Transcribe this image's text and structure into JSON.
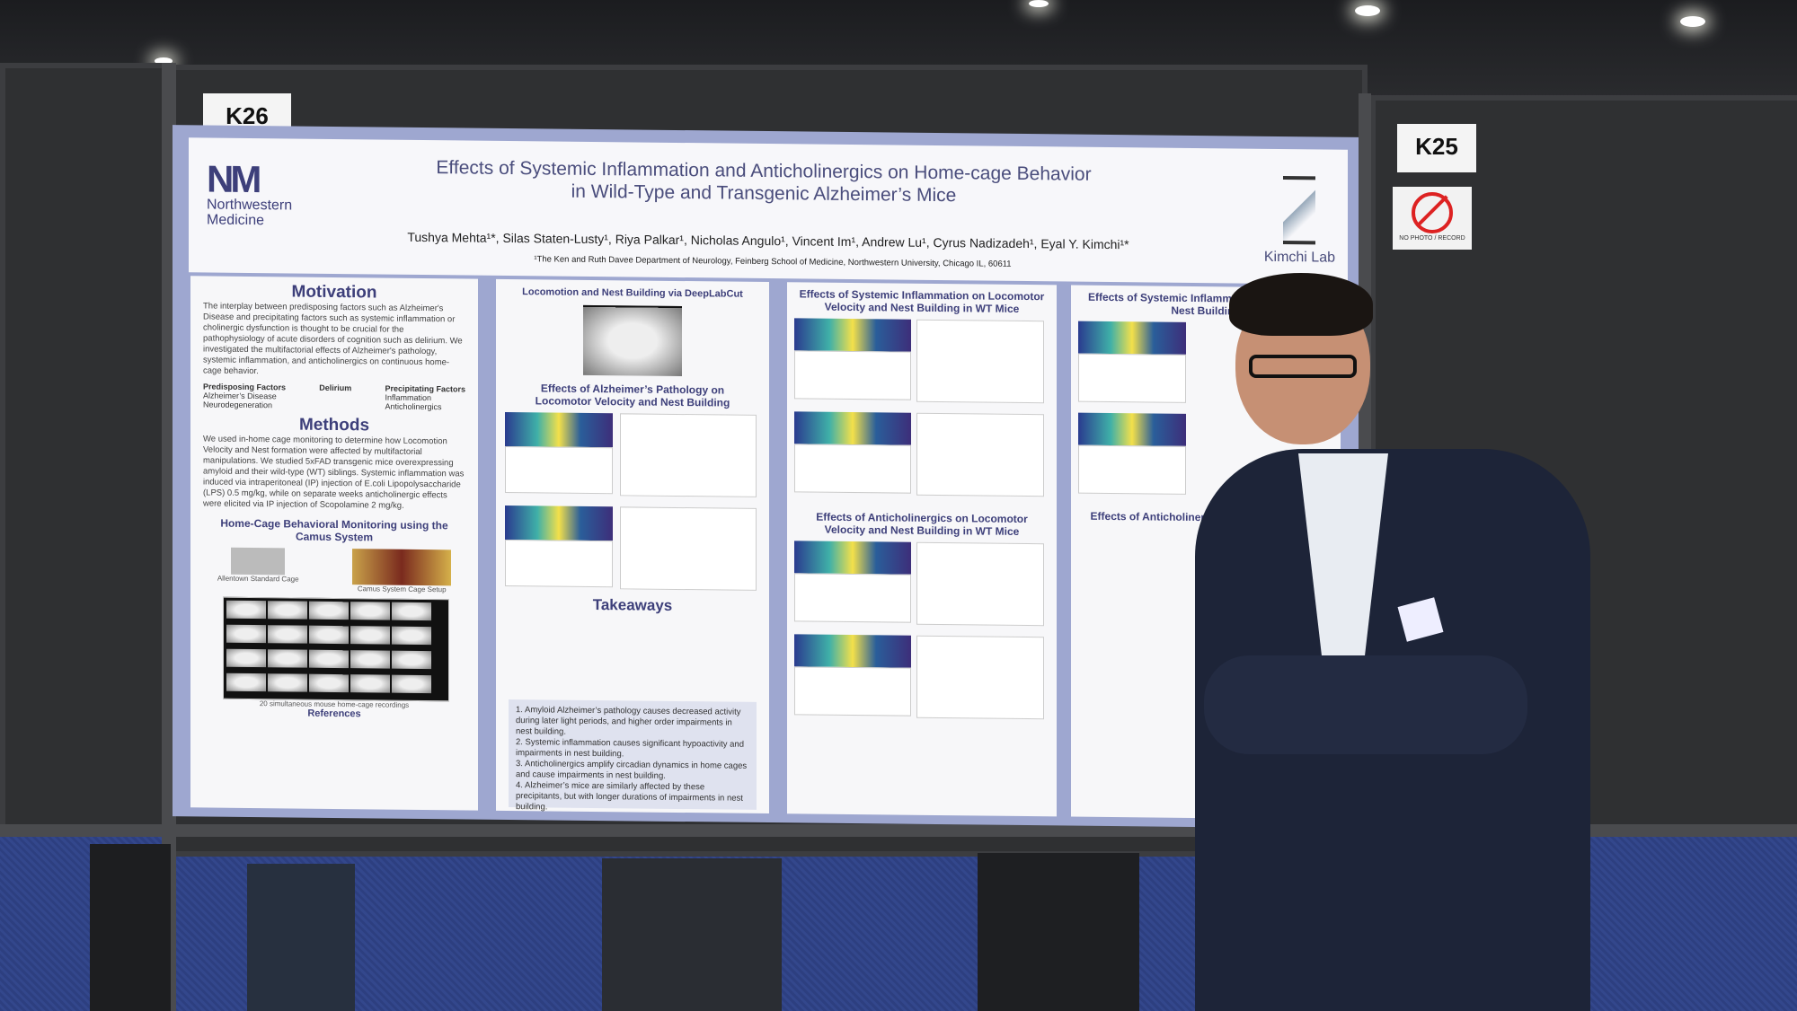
{
  "booths": {
    "left": "K26",
    "right": "K25"
  },
  "sign": {
    "text": "NO PHOTO / RECORD"
  },
  "poster": {
    "logo_mark": "NM",
    "logo_org_1": "Northwestern",
    "logo_org_2": "Medicine",
    "title_line1": "Effects of Systemic Inflammation and Anticholinergics on Home-cage Behavior",
    "title_line2": "in Wild-Type and Transgenic Alzheimer’s Mice",
    "authors": "Tushya Mehta¹*, Silas Staten-Lusty¹, Riya Palkar¹, Nicholas Angulo¹, Vincent Im¹, Andrew Lu¹, Cyrus Nadizadeh¹, Eyal Y. Kimchi¹*",
    "affiliation": "¹The Ken and Ruth Davee Department of Neurology, Feinberg School of Medicine, Northwestern University, Chicago IL, 60611",
    "lab_name": "Kimchi Lab",
    "motivation": {
      "heading": "Motivation",
      "text": "The interplay between predisposing factors such as Alzheimer's Disease and precipitating factors such as systemic inflammation or cholinergic dysfunction is thought to be crucial for the pathophysiology of acute disorders of cognition such as delirium. We investigated the multifactorial effects of Alzheimer's pathology, systemic inflammation, and anticholinergics on continuous home-cage behavior.",
      "predisposing": "Predisposing Factors",
      "predisposing_items": "Alzheimer’s Disease\nNeurodegeneration",
      "delirium": "Delirium",
      "precipitating": "Precipitating Factors",
      "precipitating_items": "Inflammation\nAnticholinergics"
    },
    "methods": {
      "heading": "Methods",
      "text": "We used in-home cage monitoring to determine how Locomotion Velocity and Nest formation were affected by multifactorial manipulations. We studied 5xFAD transgenic mice overexpressing amyloid and their wild-type (WT) siblings. Systemic inflammation was induced via intraperitoneal (IP) injection of E.coli Lipopolysaccharide (LPS) 0.5 mg/kg, while on separate weeks anticholinergic effects were elicited via IP injection of Scopolamine 2 mg/kg."
    },
    "monitoring": {
      "heading": "Home-Cage Behavioral Monitoring using the Camus System",
      "caption_left": "Allentown Standard Cage",
      "caption_right": "Camus System Cage Setup",
      "caption_grid": "20 simultaneous mouse home-cage recordings"
    },
    "references_heading": "References",
    "col2": {
      "heading_1": "Locomotion and Nest Building via DeepLabCut",
      "heading_2": "Effects of Alzheimer’s Pathology on Locomotor Velocity and Nest Building",
      "takeaways_heading": "Takeaways",
      "takeaways": [
        "1. Amyloid Alzheimer’s pathology causes decreased activity during later light periods, and higher order impairments in nest building.",
        "2. Systemic inflammation causes significant hypoactivity and impairments in nest building.",
        "3. Anticholinergics amplify circadian dynamics in home cages and cause impairments in nest building.",
        "4. Alzheimer’s mice are similarly affected by these precipitants, but with longer durations of impairments in nest building."
      ]
    },
    "col3": {
      "heading_1": "Effects of Systemic Inflammation on Locomotor Velocity and Nest Building in WT Mice",
      "heading_2": "Effects of Anticholinergics on Locomotor Velocity and Nest Building in WT Mice"
    },
    "col4": {
      "heading_1": "Effects of Systemic Inflammation Velocity and Nest Building",
      "heading_2": "Effects of Anticholinergics and Nest Building"
    }
  },
  "colors": {
    "poster_frame": "#9ea7d0",
    "title": "#4a4d7c",
    "suit": "#1d2438",
    "carpet": "#2d3f80"
  },
  "icons": [
    "hourglass-icon",
    "no-photo-icon"
  ]
}
